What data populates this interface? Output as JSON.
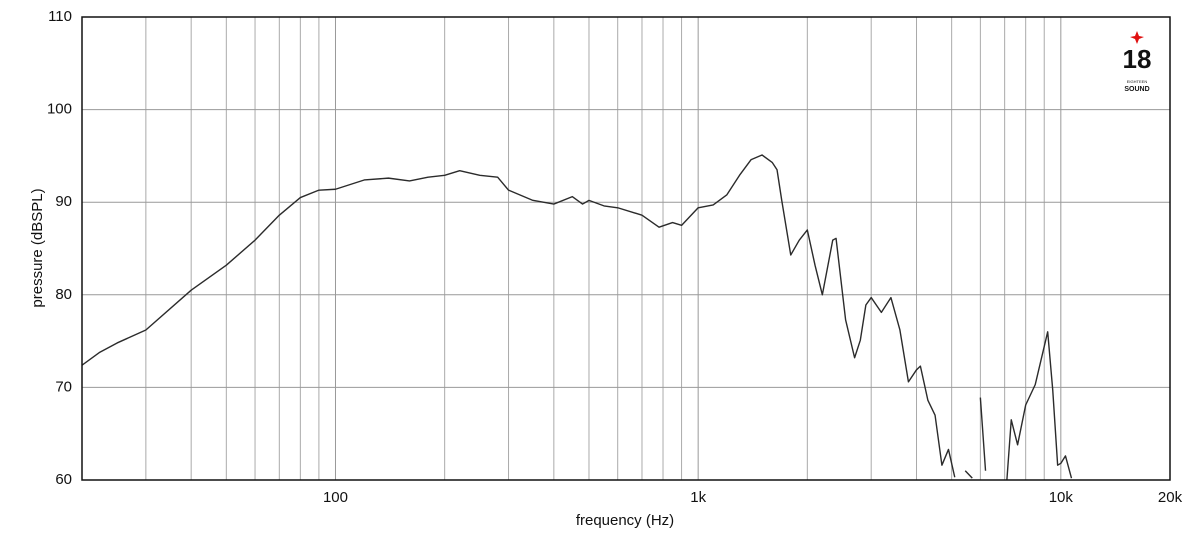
{
  "chart_data": {
    "type": "line",
    "log_x": true,
    "grid": true,
    "x_label": "frequency (Hz)",
    "y_label": "pressure (dBSPL)",
    "xlim": [
      20,
      20000
    ],
    "ylim": [
      60,
      110
    ],
    "xticks": [
      100,
      {
        "value": 1000,
        "label": "1k"
      },
      {
        "value": 10000,
        "label": "10k"
      },
      {
        "value": 20000,
        "label": "20k"
      }
    ],
    "yticks": [
      60,
      70,
      80,
      90,
      100,
      110
    ],
    "color": "#2b2b2b",
    "x": [
      20,
      22.4,
      25,
      30,
      40,
      50,
      60,
      70,
      80,
      90,
      100,
      120,
      140,
      160,
      180,
      200,
      220,
      250,
      280,
      300,
      350,
      400,
      450,
      480,
      500,
      550,
      600,
      700,
      780,
      850,
      900,
      1000,
      1100,
      1200,
      1300,
      1400,
      1500,
      1600,
      1650,
      1700,
      1800,
      1900,
      2000,
      2100,
      2200,
      2350,
      2400,
      2550,
      2700,
      2800,
      2900,
      3000,
      3200,
      3400,
      3600,
      3800,
      4000,
      4100,
      4300,
      4500,
      4700,
      4900,
      5100,
      5300,
      5450,
      5700,
      5900,
      6000,
      6200,
      6500,
      7100,
      7300,
      7600,
      8000,
      8500,
      9200,
      9500,
      9800,
      10000,
      10300,
      10700,
      11000
    ],
    "values": [
      72.4,
      73.8,
      74.8,
      76.2,
      80.5,
      83.2,
      85.9,
      88.6,
      90.5,
      91.3,
      91.4,
      92.4,
      92.6,
      92.3,
      92.7,
      92.9,
      93.4,
      92.9,
      92.7,
      91.3,
      90.2,
      89.8,
      90.6,
      89.8,
      90.2,
      89.6,
      89.4,
      88.6,
      87.3,
      87.8,
      87.5,
      89.4,
      89.7,
      90.8,
      92.9,
      94.6,
      95.1,
      94.3,
      93.5,
      90.2,
      84.3,
      85.9,
      87.0,
      83.2,
      80.0,
      85.9,
      86.1,
      77.3,
      73.2,
      75.1,
      78.9,
      79.7,
      78.1,
      79.7,
      76.2,
      70.6,
      71.9,
      72.3,
      68.6,
      67.0,
      61.6,
      63.3,
      60.3,
      null,
      61.0,
      60.2,
      null,
      68.9,
      61.0,
      null,
      60.0,
      66.5,
      63.8,
      68.1,
      70.3,
      76.0,
      69.7,
      61.6,
      61.8,
      62.6,
      60.2,
      null
    ]
  },
  "logo": {
    "number": "18",
    "small": "EIGHTEEN",
    "word": "SOUND"
  }
}
